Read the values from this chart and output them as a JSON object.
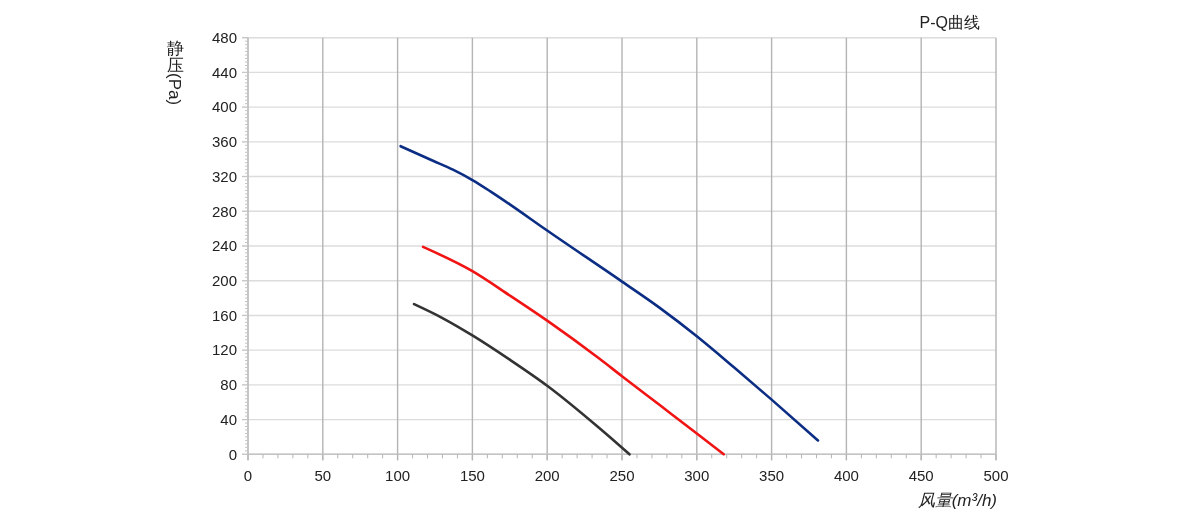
{
  "chart_data": {
    "type": "line",
    "title": "P-Q曲线",
    "xlabel": "风量(m³/h)",
    "ylabel": "静压(Pa)",
    "xlim": [
      0,
      500
    ],
    "ylim": [
      0,
      480
    ],
    "xticks": [
      0,
      {
        "value": 10,
        "label": null
      },
      {
        "value": 20,
        "label": null
      },
      {
        "value": 30,
        "label": null
      },
      {
        "value": 40,
        "label": null
      },
      50,
      {
        "value": 60,
        "label": null
      },
      {
        "value": 70,
        "label": null
      },
      {
        "value": 80,
        "label": null
      },
      {
        "value": 90,
        "label": null
      },
      100,
      {
        "value": 110,
        "label": null
      },
      {
        "value": 120,
        "label": null
      },
      {
        "value": 130,
        "label": null
      },
      {
        "value": 140,
        "label": null
      },
      150,
      {
        "value": 160,
        "label": null
      },
      {
        "value": 170,
        "label": null
      },
      {
        "value": 180,
        "label": null
      },
      {
        "value": 190,
        "label": null
      },
      200,
      {
        "value": 210,
        "label": null
      },
      {
        "value": 220,
        "label": null
      },
      {
        "value": 230,
        "label": null
      },
      {
        "value": 240,
        "label": null
      },
      250,
      {
        "value": 260,
        "label": null
      },
      {
        "value": 270,
        "label": null
      },
      {
        "value": 280,
        "label": null
      },
      {
        "value": 290,
        "label": null
      },
      300,
      {
        "value": 310,
        "label": null
      },
      {
        "value": 320,
        "label": null
      },
      {
        "value": 330,
        "label": null
      },
      {
        "value": 340,
        "label": null
      },
      350,
      {
        "value": 360,
        "label": null
      },
      {
        "value": 370,
        "label": null
      },
      {
        "value": 380,
        "label": null
      },
      {
        "value": 390,
        "label": null
      },
      400,
      {
        "value": 410,
        "label": null
      },
      {
        "value": 420,
        "label": null
      },
      {
        "value": 430,
        "label": null
      },
      {
        "value": 440,
        "label": null
      },
      450,
      {
        "value": 460,
        "label": null
      },
      {
        "value": 470,
        "label": null
      },
      {
        "value": 480,
        "label": null
      },
      {
        "value": 490,
        "label": null
      },
      500
    ],
    "yticks": [
      0,
      {
        "value": 4,
        "label": null
      },
      {
        "value": 8,
        "label": null
      },
      {
        "value": 12,
        "label": null
      },
      {
        "value": 16,
        "label": null
      },
      {
        "value": 20,
        "label": null
      },
      {
        "value": 24,
        "label": null
      },
      {
        "value": 28,
        "label": null
      },
      {
        "value": 32,
        "label": null
      },
      {
        "value": 36,
        "label": null
      },
      40,
      {
        "value": 44,
        "label": null
      },
      {
        "value": 48,
        "label": null
      },
      {
        "value": 52,
        "label": null
      },
      {
        "value": 56,
        "label": null
      },
      {
        "value": 60,
        "label": null
      },
      {
        "value": 64,
        "label": null
      },
      {
        "value": 68,
        "label": null
      },
      {
        "value": 72,
        "label": null
      },
      {
        "value": 76,
        "label": null
      },
      80,
      {
        "value": 84,
        "label": null
      },
      {
        "value": 88,
        "label": null
      },
      {
        "value": 92,
        "label": null
      },
      {
        "value": 96,
        "label": null
      },
      {
        "value": 100,
        "label": null
      },
      {
        "value": 104,
        "label": null
      },
      {
        "value": 108,
        "label": null
      },
      {
        "value": 112,
        "label": null
      },
      {
        "value": 116,
        "label": null
      },
      120,
      {
        "value": 124,
        "label": null
      },
      {
        "value": 128,
        "label": null
      },
      {
        "value": 132,
        "label": null
      },
      {
        "value": 136,
        "label": null
      },
      {
        "value": 140,
        "label": null
      },
      {
        "value": 144,
        "label": null
      },
      {
        "value": 148,
        "label": null
      },
      {
        "value": 152,
        "label": null
      },
      {
        "value": 156,
        "label": null
      },
      160,
      {
        "value": 164,
        "label": null
      },
      {
        "value": 168,
        "label": null
      },
      {
        "value": 172,
        "label": null
      },
      {
        "value": 176,
        "label": null
      },
      {
        "value": 180,
        "label": null
      },
      {
        "value": 184,
        "label": null
      },
      {
        "value": 188,
        "label": null
      },
      {
        "value": 192,
        "label": null
      },
      {
        "value": 196,
        "label": null
      },
      200,
      {
        "value": 204,
        "label": null
      },
      {
        "value": 208,
        "label": null
      },
      {
        "value": 212,
        "label": null
      },
      {
        "value": 216,
        "label": null
      },
      {
        "value": 220,
        "label": null
      },
      {
        "value": 224,
        "label": null
      },
      {
        "value": 228,
        "label": null
      },
      {
        "value": 232,
        "label": null
      },
      {
        "value": 236,
        "label": null
      },
      240,
      {
        "value": 244,
        "label": null
      },
      {
        "value": 248,
        "label": null
      },
      {
        "value": 252,
        "label": null
      },
      {
        "value": 256,
        "label": null
      },
      {
        "value": 260,
        "label": null
      },
      {
        "value": 264,
        "label": null
      },
      {
        "value": 268,
        "label": null
      },
      {
        "value": 272,
        "label": null
      },
      {
        "value": 276,
        "label": null
      },
      280,
      {
        "value": 284,
        "label": null
      },
      {
        "value": 288,
        "label": null
      },
      {
        "value": 292,
        "label": null
      },
      {
        "value": 296,
        "label": null
      },
      {
        "value": 300,
        "label": null
      },
      {
        "value": 304,
        "label": null
      },
      {
        "value": 308,
        "label": null
      },
      {
        "value": 312,
        "label": null
      },
      {
        "value": 316,
        "label": null
      },
      320,
      {
        "value": 324,
        "label": null
      },
      {
        "value": 328,
        "label": null
      },
      {
        "value": 332,
        "label": null
      },
      {
        "value": 336,
        "label": null
      },
      {
        "value": 340,
        "label": null
      },
      {
        "value": 344,
        "label": null
      },
      {
        "value": 348,
        "label": null
      },
      {
        "value": 352,
        "label": null
      },
      {
        "value": 356,
        "label": null
      },
      360,
      {
        "value": 364,
        "label": null
      },
      {
        "value": 368,
        "label": null
      },
      {
        "value": 372,
        "label": null
      },
      {
        "value": 376,
        "label": null
      },
      {
        "value": 380,
        "label": null
      },
      {
        "value": 384,
        "label": null
      },
      {
        "value": 388,
        "label": null
      },
      {
        "value": 392,
        "label": null
      },
      {
        "value": 396,
        "label": null
      },
      400,
      {
        "value": 404,
        "label": null
      },
      {
        "value": 408,
        "label": null
      },
      {
        "value": 412,
        "label": null
      },
      {
        "value": 416,
        "label": null
      },
      {
        "value": 420,
        "label": null
      },
      {
        "value": 424,
        "label": null
      },
      {
        "value": 428,
        "label": null
      },
      {
        "value": 432,
        "label": null
      },
      {
        "value": 436,
        "label": null
      },
      440,
      {
        "value": 444,
        "label": null
      },
      {
        "value": 448,
        "label": null
      },
      {
        "value": 452,
        "label": null
      },
      {
        "value": 456,
        "label": null
      },
      {
        "value": 460,
        "label": null
      },
      {
        "value": 464,
        "label": null
      },
      {
        "value": 468,
        "label": null
      },
      {
        "value": 472,
        "label": null
      },
      {
        "value": 476,
        "label": null
      },
      480
    ],
    "grid": true,
    "line_style": "solid",
    "series": [
      {
        "color": "#0b2d84",
        "x": [
          102,
          124,
          137,
          150,
          162,
          175,
          199,
          250,
          275,
          300,
          325,
          350,
          381
        ],
        "values": [
          355,
          338,
          328,
          316,
          303,
          288,
          259,
          199,
          169,
          136,
          100,
          63,
          16
        ]
      },
      {
        "color": "#f01414",
        "x": [
          117,
          150,
          175,
          200,
          235,
          250,
          275,
          300,
          318
        ],
        "values": [
          239,
          211,
          183,
          154,
          110,
          90,
          57,
          24,
          0
        ]
      },
      {
        "color": "#333333",
        "x": [
          111,
          130,
          150,
          175,
          200,
          235,
          255
        ],
        "values": [
          173,
          157,
          137,
          109,
          79,
          30,
          0
        ]
      }
    ]
  }
}
